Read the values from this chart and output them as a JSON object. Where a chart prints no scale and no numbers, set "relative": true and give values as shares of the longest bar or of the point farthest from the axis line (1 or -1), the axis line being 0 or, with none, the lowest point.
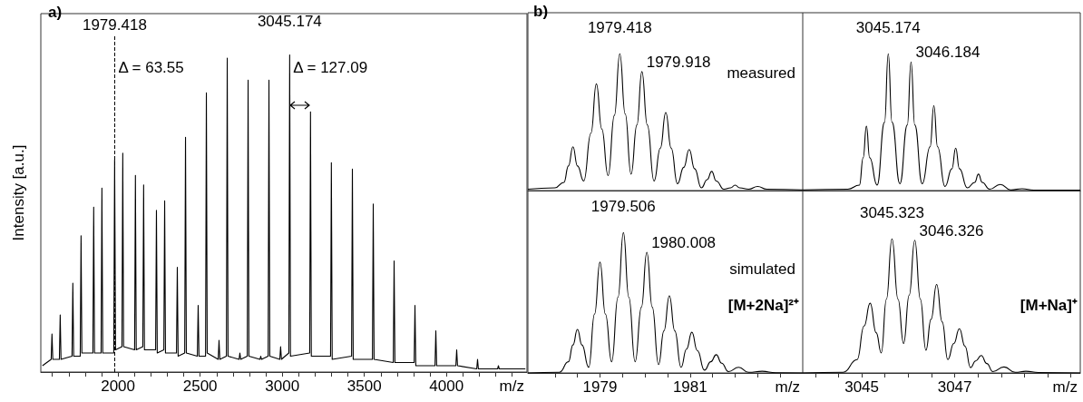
{
  "chart_data": [
    {
      "type": "line",
      "relative": true,
      "color": "#000000",
      "marker": "none",
      "tick_labels": "x",
      "xlabel": "m/z",
      "ylabel": "Intensity [a.u.]",
      "xlim": [
        1530,
        4490
      ],
      "xticks": [
        {
          "value": 1600,
          "label": null
        },
        {
          "value": 1700,
          "label": null
        },
        {
          "value": 1800,
          "label": null
        },
        {
          "value": 1900,
          "label": null
        },
        2000,
        {
          "value": 2100,
          "label": null
        },
        {
          "value": 2200,
          "label": null
        },
        {
          "value": 2300,
          "label": null
        },
        {
          "value": 2400,
          "label": null
        },
        2500,
        {
          "value": 2600,
          "label": null
        },
        {
          "value": 2700,
          "label": null
        },
        {
          "value": 2800,
          "label": null
        },
        {
          "value": 2900,
          "label": null
        },
        3000,
        {
          "value": 3100,
          "label": null
        },
        {
          "value": 3200,
          "label": null
        },
        {
          "value": 3300,
          "label": null
        },
        {
          "value": 3400,
          "label": null
        },
        3500,
        {
          "value": 3600,
          "label": null
        },
        {
          "value": 3700,
          "label": null
        },
        {
          "value": 3800,
          "label": null
        },
        {
          "value": 3900,
          "label": null
        },
        4000,
        {
          "value": 4100,
          "label": null
        },
        {
          "value": 4200,
          "label": null
        },
        {
          "value": 4300,
          "label": null
        },
        {
          "value": 4400,
          "label": null
        }
      ],
      "x": [
        1540,
        1593,
        1598,
        1603,
        1643,
        1648,
        1653,
        1720,
        1725,
        1730,
        1770,
        1775,
        1780,
        1847,
        1852,
        1857,
        1897,
        1902,
        1907,
        1974,
        1979.418,
        1985,
        2024,
        2029,
        2034,
        2101,
        2106,
        2111,
        2151,
        2156,
        2161,
        2229,
        2234,
        2239,
        2279,
        2284,
        2289,
        2356,
        2361,
        2366,
        2406,
        2411,
        2416,
        2483,
        2488,
        2493,
        2533,
        2538,
        2543,
        2610,
        2615,
        2620,
        2660,
        2665,
        2670,
        2737,
        2742,
        2747,
        2787,
        2792,
        2797,
        2864,
        2869,
        2874,
        2914,
        2919,
        2924,
        2985,
        2990,
        2995,
        3040,
        3045.174,
        3050,
        3167,
        3172,
        3177,
        3294,
        3299,
        3304,
        3422,
        3427,
        3432,
        3549,
        3554,
        3559,
        3676,
        3681,
        3686,
        3803,
        3808,
        3813,
        3930,
        3935,
        3940,
        4057,
        4062,
        4067,
        4184,
        4189,
        4194,
        4311,
        4316,
        4321,
        4480
      ],
      "values": [
        0.02,
        0.04,
        0.12,
        0.04,
        0.04,
        0.18,
        0.04,
        0.05,
        0.28,
        0.05,
        0.05,
        0.43,
        0.06,
        0.06,
        0.52,
        0.06,
        0.06,
        0.58,
        0.06,
        0.06,
        0.67,
        0.07,
        0.08,
        0.69,
        0.08,
        0.07,
        0.62,
        0.07,
        0.08,
        0.59,
        0.07,
        0.07,
        0.51,
        0.06,
        0.07,
        0.54,
        0.06,
        0.06,
        0.33,
        0.05,
        0.06,
        0.74,
        0.06,
        0.05,
        0.21,
        0.05,
        0.05,
        0.88,
        0.06,
        0.04,
        0.1,
        0.04,
        0.05,
        0.99,
        0.05,
        0.04,
        0.06,
        0.04,
        0.05,
        0.92,
        0.05,
        0.04,
        0.05,
        0.04,
        0.05,
        0.92,
        0.05,
        0.04,
        0.08,
        0.04,
        0.06,
        1.0,
        0.05,
        0.06,
        0.82,
        0.05,
        0.05,
        0.66,
        0.04,
        0.05,
        0.64,
        0.04,
        0.04,
        0.53,
        0.04,
        0.03,
        0.35,
        0.03,
        0.03,
        0.21,
        0.02,
        0.02,
        0.13,
        0.02,
        0.02,
        0.07,
        0.02,
        0.01,
        0.04,
        0.01,
        0.01,
        0.02,
        0.01,
        0.01
      ],
      "ref_lines": [
        {
          "axis": "x",
          "value": 1979.418,
          "label": "1979.418",
          "line_style": "dashed"
        }
      ],
      "annotations": [
        "a)",
        {
          "text": "3045.174",
          "x": 3045.174,
          "y": 1.0
        },
        {
          "text": "Δ = 63.55",
          "x": 1979.418,
          "y": 0.96
        },
        {
          "text": "Δ = 127.09",
          "x": 3045.174,
          "y": 0.96
        }
      ]
    },
    {
      "type": "line",
      "relative": true,
      "color": "#000000",
      "marker": "none",
      "tick_labels": false,
      "xlim": [
        1977.4,
        1983.5
      ],
      "x": [
        1977.4,
        1978.0,
        1978.2,
        1978.3,
        1978.4,
        1978.5,
        1978.64,
        1978.8,
        1978.92,
        1979.04,
        1979.18,
        1979.32,
        1979.44,
        1979.56,
        1979.69,
        1979.82,
        1979.93,
        1980.05,
        1980.2,
        1980.34,
        1980.46,
        1980.58,
        1980.72,
        1980.86,
        1980.98,
        1981.1,
        1981.25,
        1981.38,
        1981.48,
        1981.58,
        1981.75,
        1981.9,
        1982.0,
        1982.1,
        1982.3,
        1982.5,
        1982.7,
        1983.5
      ],
      "values": [
        0.01,
        0.02,
        0.06,
        0.18,
        0.32,
        0.18,
        0.07,
        0.42,
        0.78,
        0.45,
        0.11,
        0.55,
        1.0,
        0.56,
        0.12,
        0.48,
        0.87,
        0.48,
        0.07,
        0.31,
        0.57,
        0.31,
        0.05,
        0.17,
        0.3,
        0.16,
        0.02,
        0.08,
        0.14,
        0.07,
        0.01,
        0.02,
        0.04,
        0.02,
        0.01,
        0.03,
        0.01,
        0.005
      ],
      "annotations": [
        "b)",
        {
          "text": "1979.418",
          "x": 1979.44,
          "y": 1.0
        },
        {
          "text": "1979.918",
          "x": 1979.93,
          "y": 0.87
        },
        "measured"
      ]
    },
    {
      "type": "line",
      "relative": true,
      "color": "#000000",
      "marker": "none",
      "tick_labels": false,
      "xlim": [
        3043.73,
        3049.7
      ],
      "x": [
        3043.73,
        3044.7,
        3044.95,
        3045.03,
        3045.1,
        3045.17,
        3045.33,
        3045.49,
        3045.57,
        3045.65,
        3045.82,
        3045.98,
        3046.06,
        3046.14,
        3046.3,
        3046.47,
        3046.55,
        3046.63,
        3046.79,
        3046.94,
        3047.02,
        3047.1,
        3047.27,
        3047.43,
        3047.51,
        3047.59,
        3047.75,
        3047.98,
        3048.2,
        3048.45,
        3048.7,
        3049.7
      ],
      "values": [
        0.005,
        0.01,
        0.04,
        0.24,
        0.47,
        0.24,
        0.04,
        0.5,
        1.0,
        0.5,
        0.05,
        0.48,
        0.94,
        0.48,
        0.05,
        0.32,
        0.62,
        0.32,
        0.03,
        0.16,
        0.31,
        0.16,
        0.02,
        0.06,
        0.12,
        0.06,
        0.01,
        0.045,
        0.005,
        0.013,
        0.003,
        0.003
      ],
      "annotations": [
        {
          "text": "3045.174",
          "x": 3045.57,
          "y": 1.0
        },
        {
          "text": "3046.184",
          "x": 3046.06,
          "y": 0.94
        }
      ]
    },
    {
      "type": "line",
      "relative": true,
      "color": "#000000",
      "marker": "none",
      "tick_labels": "x",
      "xlabel": "m/z",
      "xlim": [
        1977.4,
        1983.5
      ],
      "xticks": [
        {
          "value": 1978,
          "label": null
        },
        {
          "value": 1978.5,
          "label": null
        },
        1979,
        {
          "value": 1979.5,
          "label": null
        },
        {
          "value": 1980,
          "label": null
        },
        {
          "value": 1980.5,
          "label": null
        },
        1981,
        {
          "value": 1981.5,
          "label": null
        },
        {
          "value": 1982,
          "label": null
        },
        {
          "value": 1982.5,
          "label": null
        },
        {
          "value": 1983,
          "label": null
        }
      ],
      "x": [
        1977.4,
        1978.1,
        1978.3,
        1978.4,
        1978.5,
        1978.6,
        1978.75,
        1978.88,
        1979.0,
        1979.12,
        1979.26,
        1979.4,
        1979.52,
        1979.64,
        1979.78,
        1979.92,
        1980.04,
        1980.16,
        1980.3,
        1980.42,
        1980.54,
        1980.66,
        1980.8,
        1980.92,
        1981.04,
        1981.16,
        1981.32,
        1981.46,
        1981.58,
        1981.7,
        1981.85,
        1982.08,
        1982.3,
        1982.6,
        1982.9,
        1983.5
      ],
      "values": [
        0,
        0.005,
        0.08,
        0.2,
        0.31,
        0.2,
        0.04,
        0.42,
        0.79,
        0.42,
        0.08,
        0.54,
        1.0,
        0.54,
        0.08,
        0.47,
        0.86,
        0.47,
        0.06,
        0.3,
        0.55,
        0.3,
        0.04,
        0.17,
        0.29,
        0.16,
        0.02,
        0.08,
        0.13,
        0.07,
        0.01,
        0.04,
        0.005,
        0.012,
        0.002,
        0
      ],
      "annotations": [
        {
          "text": "1979.506",
          "x": 1979.52,
          "y": 1.0
        },
        {
          "text": "1980.008",
          "x": 1980.04,
          "y": 0.86
        },
        "simulated",
        "[M+2Na]²⁺"
      ]
    },
    {
      "type": "line",
      "relative": true,
      "color": "#000000",
      "marker": "none",
      "tick_labels": "x",
      "xlabel": "m/z",
      "xlim": [
        3043.73,
        3049.7
      ],
      "xticks": [
        {
          "value": 3044,
          "label": null
        },
        {
          "value": 3044.5,
          "label": null
        },
        3045,
        {
          "value": 3045.5,
          "label": null
        },
        {
          "value": 3046,
          "label": null
        },
        {
          "value": 3046.5,
          "label": null
        },
        3047,
        {
          "value": 3047.5,
          "label": null
        },
        {
          "value": 3048,
          "label": null
        },
        {
          "value": 3048.5,
          "label": null
        },
        {
          "value": 3049,
          "label": null
        },
        {
          "value": 3049.5,
          "label": null
        }
      ],
      "x": [
        3043.73,
        3044.6,
        3044.9,
        3045.05,
        3045.18,
        3045.31,
        3045.42,
        3045.53,
        3045.65,
        3045.78,
        3045.9,
        3046.02,
        3046.14,
        3046.26,
        3046.38,
        3046.49,
        3046.61,
        3046.73,
        3046.85,
        3046.98,
        3047.1,
        3047.22,
        3047.34,
        3047.45,
        3047.57,
        3047.69,
        3047.82,
        3048.06,
        3048.3,
        3048.53,
        3048.8,
        3049.7
      ],
      "values": [
        0,
        0.005,
        0.1,
        0.35,
        0.52,
        0.3,
        0.15,
        0.55,
        1.0,
        0.55,
        0.22,
        0.58,
        0.99,
        0.55,
        0.17,
        0.4,
        0.66,
        0.38,
        0.1,
        0.22,
        0.33,
        0.2,
        0.04,
        0.09,
        0.13,
        0.07,
        0.01,
        0.045,
        0.005,
        0.013,
        0.003,
        0
      ],
      "annotations": [
        {
          "text": "3045.323",
          "x": 3045.65,
          "y": 1.0
        },
        {
          "text": "3046.326",
          "x": 3046.14,
          "y": 0.99
        },
        "[M+Na]⁺"
      ]
    }
  ]
}
